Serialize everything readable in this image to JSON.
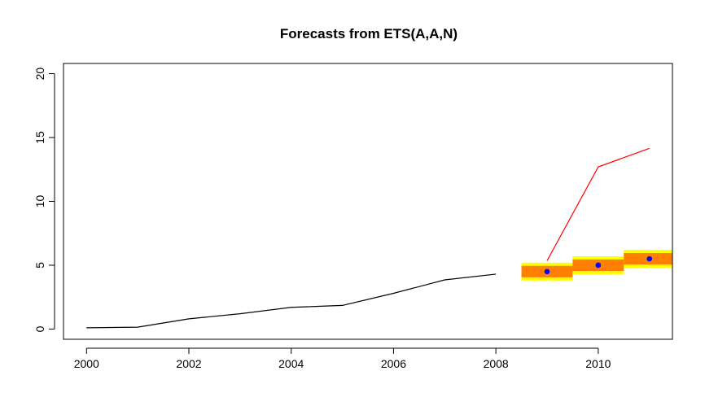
{
  "chart_data": {
    "type": "line",
    "title": "Forecasts from ETS(A,A,N)",
    "xlabel": "",
    "ylabel": "",
    "xlim": [
      1999.55,
      2011.45
    ],
    "ylim": [
      -0.8,
      20.8
    ],
    "x_ticks": [
      2000,
      2002,
      2004,
      2006,
      2008,
      2010
    ],
    "x_tick_labels": [
      "2000",
      "2002",
      "2004",
      "2006",
      "2008",
      "2010"
    ],
    "y_ticks": [
      0,
      5,
      10,
      15,
      20
    ],
    "y_tick_labels": [
      "0",
      "5",
      "10",
      "15",
      "20"
    ],
    "series": [
      {
        "role": "history",
        "color": "#000000",
        "x": [
          2000,
          2001,
          2002,
          2003,
          2004,
          2005,
          2006,
          2007,
          2008
        ],
        "y": [
          0.1,
          0.15,
          0.8,
          1.2,
          1.7,
          1.85,
          2.8,
          3.85,
          4.3
        ]
      },
      {
        "role": "actual",
        "color": "#ff0000",
        "x": [
          2009,
          2010,
          2011
        ],
        "y": [
          5.35,
          12.7,
          14.15
        ]
      },
      {
        "role": "point-forecast",
        "color": "#0000ff",
        "x": [
          2009,
          2010,
          2011
        ],
        "y": [
          4.5,
          5.0,
          5.5
        ]
      }
    ],
    "intervals": [
      {
        "level": 95,
        "color": "#ffff00",
        "x": [
          2009,
          2010,
          2011
        ],
        "lower": [
          3.8,
          4.3,
          4.8
        ],
        "upper": [
          5.2,
          5.7,
          6.2
        ]
      },
      {
        "level": 80,
        "color": "#ff7f00",
        "x": [
          2009,
          2010,
          2011
        ],
        "lower": [
          4.05,
          4.55,
          5.05
        ],
        "upper": [
          4.95,
          5.45,
          5.95
        ]
      }
    ],
    "grid": false,
    "legend": "none"
  }
}
